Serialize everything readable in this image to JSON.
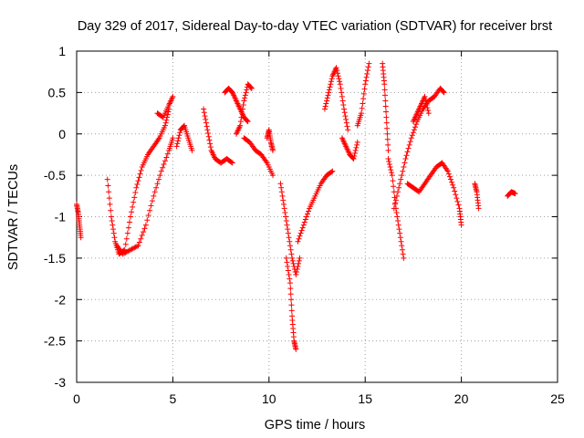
{
  "chart_data": {
    "type": "scatter",
    "title": "Day 329 of 2017, Sidereal Day-to-day VTEC variation (SDTVAR) for receiver brst",
    "xlabel": "GPS time / hours",
    "ylabel": "SDTVAR / TECUs",
    "xlim": [
      0,
      25
    ],
    "ylim": [
      -3,
      1
    ],
    "xticks": [
      0,
      5,
      10,
      15,
      20,
      25
    ],
    "xtick_labels": [
      "0",
      "5",
      "10",
      "15",
      "20",
      "25"
    ],
    "yticks": [
      1,
      0.5,
      0,
      -0.5,
      -1,
      -1.5,
      -2,
      -2.5,
      -3
    ],
    "ytick_labels": [
      "1",
      "0.5",
      "0",
      "-0.5",
      "-1",
      "-1.5",
      "-2",
      "-2.5",
      "-3"
    ],
    "grid": true,
    "marker": "+",
    "color": "#ff0000",
    "series": [
      {
        "name": "s1",
        "x": [
          0.0,
          0.08,
          0.15,
          0.22
        ],
        "y": [
          -0.85,
          -0.95,
          -1.1,
          -1.25
        ]
      },
      {
        "name": "s2",
        "x": [
          1.6,
          1.8,
          2.0,
          2.2,
          2.5,
          2.8,
          3.1,
          3.4,
          3.7,
          4.0,
          4.3,
          4.6,
          4.8
        ],
        "y": [
          -0.55,
          -1.0,
          -1.3,
          -1.45,
          -1.4,
          -1.0,
          -0.65,
          -0.4,
          -0.25,
          -0.15,
          -0.05,
          0.1,
          0.3
        ]
      },
      {
        "name": "s3",
        "x": [
          2.1,
          2.4,
          2.8,
          3.2,
          3.6,
          4.0,
          4.4,
          4.8,
          5.0
        ],
        "y": [
          -1.35,
          -1.45,
          -1.4,
          -1.35,
          -1.1,
          -0.75,
          -0.45,
          -0.2,
          -0.05
        ]
      },
      {
        "name": "s4",
        "x": [
          4.2,
          4.5,
          4.8,
          5.0
        ],
        "y": [
          0.25,
          0.2,
          0.35,
          0.45
        ]
      },
      {
        "name": "s5",
        "x": [
          5.2,
          5.4,
          5.6,
          5.8,
          6.0
        ],
        "y": [
          -0.15,
          0.05,
          0.1,
          -0.05,
          -0.2
        ]
      },
      {
        "name": "s6",
        "x": [
          6.6,
          6.8,
          7.0,
          7.2,
          7.5,
          7.8,
          8.1
        ],
        "y": [
          0.3,
          0.05,
          -0.2,
          -0.3,
          -0.35,
          -0.3,
          -0.35
        ]
      },
      {
        "name": "s7",
        "x": [
          7.7,
          7.9,
          8.1,
          8.3,
          8.5,
          8.7,
          8.9
        ],
        "y": [
          0.5,
          0.55,
          0.5,
          0.4,
          0.3,
          0.2,
          0.15
        ]
      },
      {
        "name": "s8",
        "x": [
          8.3,
          8.5,
          8.7,
          8.9,
          9.1
        ],
        "y": [
          0.0,
          0.1,
          0.4,
          0.6,
          0.55
        ]
      },
      {
        "name": "s9",
        "x": [
          8.7,
          9.0,
          9.3,
          9.6,
          9.9,
          10.2
        ],
        "y": [
          -0.05,
          -0.1,
          -0.2,
          -0.25,
          -0.35,
          -0.5
        ]
      },
      {
        "name": "s10",
        "x": [
          9.9,
          10.0,
          10.1,
          10.2
        ],
        "y": [
          -0.05,
          0.05,
          -0.1,
          -0.2
        ]
      },
      {
        "name": "s11",
        "x": [
          10.6,
          10.8,
          11.0,
          11.2,
          11.4,
          11.6
        ],
        "y": [
          -0.6,
          -0.9,
          -1.2,
          -1.5,
          -1.7,
          -1.5
        ]
      },
      {
        "name": "s12",
        "x": [
          10.9,
          11.1,
          11.2,
          11.3,
          11.4
        ],
        "y": [
          -1.5,
          -1.8,
          -2.2,
          -2.5,
          -2.6
        ]
      },
      {
        "name": "s13",
        "x": [
          11.5,
          11.8,
          12.1,
          12.4,
          12.7,
          13.0,
          13.3
        ],
        "y": [
          -1.3,
          -1.1,
          -0.9,
          -0.75,
          -0.6,
          -0.5,
          -0.45
        ]
      },
      {
        "name": "s14",
        "x": [
          12.9,
          13.1,
          13.3,
          13.5,
          13.7,
          13.9,
          14.1
        ],
        "y": [
          0.3,
          0.5,
          0.7,
          0.8,
          0.6,
          0.3,
          0.05
        ]
      },
      {
        "name": "s15",
        "x": [
          13.8,
          14.0,
          14.2,
          14.4,
          14.6
        ],
        "y": [
          -0.05,
          -0.15,
          -0.25,
          -0.3,
          -0.1
        ]
      },
      {
        "name": "s16",
        "x": [
          14.6,
          14.8,
          15.0,
          15.2
        ],
        "y": [
          0.1,
          0.25,
          0.6,
          0.85
        ]
      },
      {
        "name": "s17",
        "x": [
          15.9,
          16.0,
          16.1,
          16.2
        ],
        "y": [
          0.85,
          0.6,
          0.2,
          -0.2
        ]
      },
      {
        "name": "s18",
        "x": [
          16.2,
          16.4,
          16.6,
          16.8,
          17.0
        ],
        "y": [
          -0.3,
          -0.5,
          -0.9,
          -1.2,
          -1.5
        ]
      },
      {
        "name": "s19",
        "x": [
          16.5,
          16.8,
          17.1,
          17.4,
          17.7,
          18.0,
          18.3,
          18.6,
          18.9,
          19.1
        ],
        "y": [
          -0.9,
          -0.6,
          -0.3,
          -0.05,
          0.15,
          0.3,
          0.4,
          0.45,
          0.55,
          0.5
        ]
      },
      {
        "name": "s20",
        "x": [
          17.2,
          17.5,
          17.8,
          18.1,
          18.4,
          18.7,
          19.0,
          19.3,
          19.6,
          19.9,
          20.0
        ],
        "y": [
          -0.6,
          -0.65,
          -0.7,
          -0.6,
          -0.5,
          -0.4,
          -0.35,
          -0.45,
          -0.65,
          -0.9,
          -1.1
        ]
      },
      {
        "name": "s21",
        "x": [
          17.5,
          17.7,
          17.9,
          18.1,
          18.3
        ],
        "y": [
          0.15,
          0.25,
          0.35,
          0.45,
          0.25
        ]
      },
      {
        "name": "s22",
        "x": [
          20.7,
          20.8,
          20.9
        ],
        "y": [
          -0.6,
          -0.7,
          -0.9
        ]
      },
      {
        "name": "s23",
        "x": [
          22.4,
          22.6,
          22.8
        ],
        "y": [
          -0.75,
          -0.7,
          -0.72
        ]
      }
    ]
  }
}
